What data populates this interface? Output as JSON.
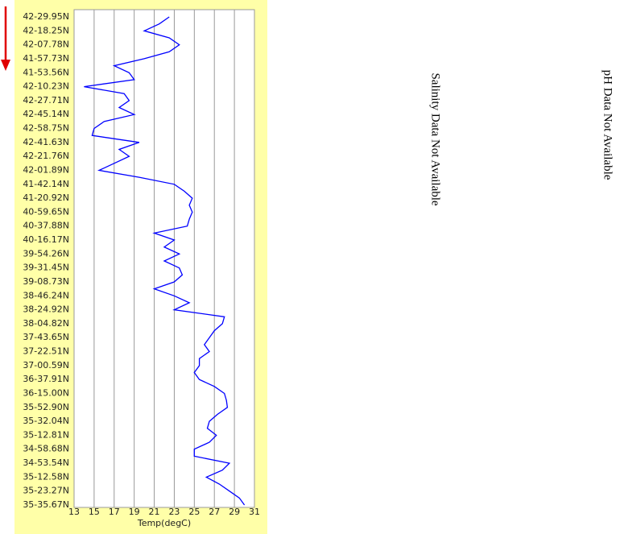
{
  "chart_data": {
    "type": "line",
    "x_label": "Temp(degC)",
    "categories": [
      "42-29.95N",
      null,
      "42-18.25N",
      null,
      "42-07.78N",
      null,
      "41-57.73N",
      null,
      "41-53.56N",
      null,
      "42-10.23N",
      null,
      "42-27.71N",
      null,
      "42-45.14N",
      null,
      "42-58.75N",
      null,
      "42-41.63N",
      null,
      "42-21.76N",
      null,
      "42-01.89N",
      null,
      "41-42.14N",
      null,
      "41-20.92N",
      null,
      "40-59.65N",
      null,
      "40-37.88N",
      null,
      "40-16.17N",
      null,
      "39-54.26N",
      null,
      "39-31.45N",
      null,
      "39-08.73N",
      null,
      "38-46.24N",
      null,
      "38-24.92N",
      null,
      "38-04.82N",
      null,
      "37-43.65N",
      null,
      "37-22.51N",
      null,
      "37-00.59N",
      null,
      "36-37.91N",
      null,
      "36-15.00N",
      null,
      "35-52.90N",
      null,
      "35-32.04N",
      null,
      "35-12.81N",
      null,
      "34-58.68N",
      null,
      "34-53.54N",
      null,
      "35-12.58N",
      null,
      "35-23.27N",
      null,
      "35-35.67N"
    ],
    "values": [
      22.5,
      21.5,
      20,
      22.5,
      23.5,
      22.5,
      20,
      17,
      18.5,
      19,
      14,
      18,
      18.5,
      17.5,
      19,
      16,
      15,
      14.8,
      19.5,
      17.5,
      18.5,
      17,
      15.5,
      19.5,
      23,
      24,
      24.8,
      24.5,
      24.8,
      24.5,
      24.3,
      21,
      23,
      22,
      23.5,
      22,
      23.5,
      23.8,
      23,
      21,
      23,
      24.5,
      23,
      28,
      27.8,
      27,
      26.5,
      26,
      26.5,
      25.5,
      25.5,
      25,
      25.5,
      27,
      28,
      28.2,
      28.3,
      27.3,
      26.5,
      26.3,
      27.2,
      26.5,
      25,
      25,
      28.5,
      27.8,
      26.2,
      27.5,
      28.5,
      29.5,
      30
    ],
    "color": "#0000ff",
    "xlim": [
      13,
      31
    ],
    "xticks": [
      13,
      15,
      17,
      19,
      21,
      23,
      25,
      27,
      29,
      31
    ],
    "grid": true,
    "annotations": [
      "Salinity Data Not Available",
      "pH Data Not Available"
    ]
  }
}
